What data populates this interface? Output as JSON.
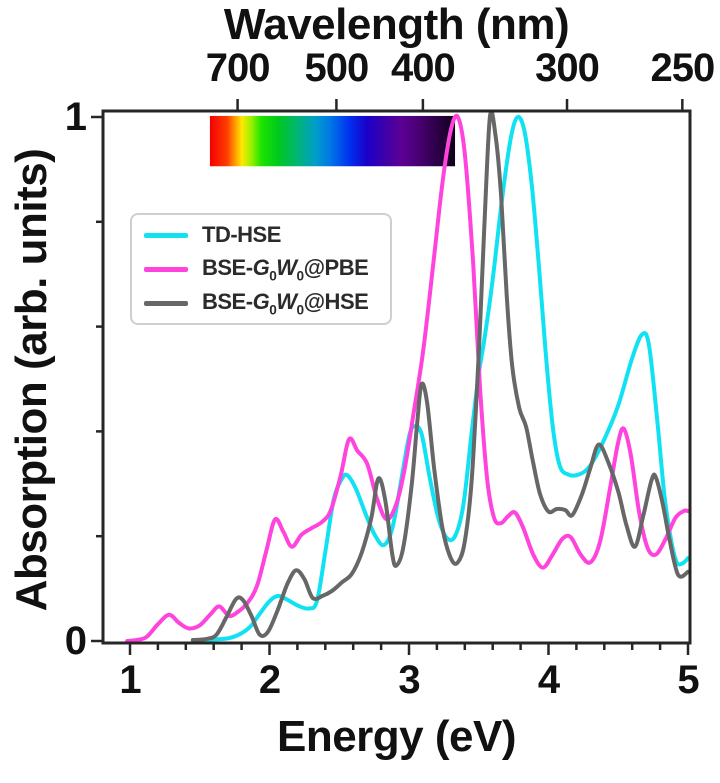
{
  "figure": {
    "top_axis_title": "Wavelength (nm)",
    "xlabel": "Energy (eV)",
    "ylabel": "Absorption (arb. units)"
  },
  "legend": {
    "items": [
      {
        "label": "TD-HSE",
        "color": "#10e2f2"
      },
      {
        "prefix": "BSE-",
        "G": "G",
        "Gsub": "0",
        "W": "W",
        "Wsub": "0",
        "suffix": "@PBE",
        "color": "#ff44dd"
      },
      {
        "prefix": "BSE-",
        "G": "G",
        "Gsub": "0",
        "W": "W",
        "Wsub": "0",
        "suffix": "@HSE",
        "color": "#676767"
      }
    ]
  },
  "chart_data": {
    "type": "line",
    "title": "Wavelength (nm)",
    "xlabel": "Energy (eV)",
    "ylabel": "Absorption (arb. units)",
    "xlim": [
      0.81,
      5.01
    ],
    "ylim": [
      0,
      1.01
    ],
    "grid": false,
    "legend_position": "upper-left",
    "x_major_ticks": [
      1,
      2,
      3,
      4,
      5
    ],
    "x_minor_step": 0.2,
    "y_ticks": [
      0,
      0.2,
      0.4,
      0.6,
      0.8,
      1.0
    ],
    "y_labeled_ticks": [
      0,
      1
    ],
    "top_axis": {
      "label": "Wavelength (nm)",
      "ticks_nm": [
        700,
        500,
        400,
        300,
        250
      ],
      "ev_per_nm_constant": 1239.84
    },
    "spectrum_bar": {
      "e_start": 1.573,
      "e_end": 3.33,
      "v_top": 1.002,
      "v_bottom": 0.906,
      "stops": [
        {
          "pos": 0.0,
          "color": "#f40000"
        },
        {
          "pos": 0.07,
          "color": "#ff3c00"
        },
        {
          "pos": 0.1,
          "color": "#ff9400"
        },
        {
          "pos": 0.13,
          "color": "#ffe800"
        },
        {
          "pos": 0.17,
          "color": "#96f000"
        },
        {
          "pos": 0.21,
          "color": "#1ce400"
        },
        {
          "pos": 0.28,
          "color": "#00c81e"
        },
        {
          "pos": 0.36,
          "color": "#00b478"
        },
        {
          "pos": 0.43,
          "color": "#009ec8"
        },
        {
          "pos": 0.49,
          "color": "#0078e6"
        },
        {
          "pos": 0.57,
          "color": "#0030f0"
        },
        {
          "pos": 0.64,
          "color": "#1a00c8"
        },
        {
          "pos": 0.71,
          "color": "#3c00aa"
        },
        {
          "pos": 0.78,
          "color": "#5c0096"
        },
        {
          "pos": 0.86,
          "color": "#46006e"
        },
        {
          "pos": 0.94,
          "color": "#280040"
        },
        {
          "pos": 1.0,
          "color": "#100018"
        }
      ]
    },
    "series": [
      {
        "name": "TD-HSE",
        "color": "#10e2f2",
        "points": [
          [
            1.5,
            0.002
          ],
          [
            1.6,
            0.003
          ],
          [
            1.7,
            0.005
          ],
          [
            1.78,
            0.012
          ],
          [
            1.86,
            0.027
          ],
          [
            1.93,
            0.052
          ],
          [
            2.0,
            0.076
          ],
          [
            2.06,
            0.086
          ],
          [
            2.12,
            0.08
          ],
          [
            2.2,
            0.068
          ],
          [
            2.28,
            0.062
          ],
          [
            2.34,
            0.076
          ],
          [
            2.4,
            0.17
          ],
          [
            2.46,
            0.27
          ],
          [
            2.52,
            0.31
          ],
          [
            2.56,
            0.316
          ],
          [
            2.62,
            0.29
          ],
          [
            2.7,
            0.235
          ],
          [
            2.76,
            0.2
          ],
          [
            2.82,
            0.183
          ],
          [
            2.88,
            0.215
          ],
          [
            2.94,
            0.3
          ],
          [
            3.0,
            0.39
          ],
          [
            3.04,
            0.41
          ],
          [
            3.09,
            0.395
          ],
          [
            3.15,
            0.31
          ],
          [
            3.21,
            0.235
          ],
          [
            3.27,
            0.197
          ],
          [
            3.33,
            0.2
          ],
          [
            3.39,
            0.26
          ],
          [
            3.45,
            0.4
          ],
          [
            3.5,
            0.51
          ],
          [
            3.54,
            0.575
          ],
          [
            3.6,
            0.69
          ],
          [
            3.67,
            0.85
          ],
          [
            3.73,
            0.96
          ],
          [
            3.78,
            1.0
          ],
          [
            3.83,
            0.97
          ],
          [
            3.88,
            0.87
          ],
          [
            3.93,
            0.72
          ],
          [
            3.98,
            0.55
          ],
          [
            4.03,
            0.41
          ],
          [
            4.08,
            0.335
          ],
          [
            4.14,
            0.318
          ],
          [
            4.22,
            0.318
          ],
          [
            4.3,
            0.335
          ],
          [
            4.4,
            0.385
          ],
          [
            4.5,
            0.45
          ],
          [
            4.6,
            0.54
          ],
          [
            4.67,
            0.585
          ],
          [
            4.72,
            0.565
          ],
          [
            4.78,
            0.42
          ],
          [
            4.83,
            0.28
          ],
          [
            4.88,
            0.19
          ],
          [
            4.92,
            0.15
          ],
          [
            4.96,
            0.148
          ],
          [
            5.0,
            0.158
          ]
        ]
      },
      {
        "name": "BSE-G0W0@PBE",
        "color": "#ff44dd",
        "points": [
          [
            0.98,
            0.0
          ],
          [
            1.05,
            0.002
          ],
          [
            1.12,
            0.008
          ],
          [
            1.2,
            0.032
          ],
          [
            1.28,
            0.05
          ],
          [
            1.35,
            0.035
          ],
          [
            1.42,
            0.024
          ],
          [
            1.5,
            0.03
          ],
          [
            1.58,
            0.052
          ],
          [
            1.64,
            0.066
          ],
          [
            1.71,
            0.048
          ],
          [
            1.77,
            0.055
          ],
          [
            1.84,
            0.072
          ],
          [
            1.91,
            0.105
          ],
          [
            1.98,
            0.175
          ],
          [
            2.04,
            0.232
          ],
          [
            2.1,
            0.208
          ],
          [
            2.16,
            0.18
          ],
          [
            2.23,
            0.203
          ],
          [
            2.3,
            0.215
          ],
          [
            2.38,
            0.228
          ],
          [
            2.44,
            0.25
          ],
          [
            2.51,
            0.315
          ],
          [
            2.57,
            0.385
          ],
          [
            2.63,
            0.363
          ],
          [
            2.7,
            0.338
          ],
          [
            2.77,
            0.272
          ],
          [
            2.84,
            0.232
          ],
          [
            2.91,
            0.262
          ],
          [
            2.97,
            0.33
          ],
          [
            3.03,
            0.43
          ],
          [
            3.1,
            0.55
          ],
          [
            3.17,
            0.71
          ],
          [
            3.24,
            0.875
          ],
          [
            3.3,
            0.975
          ],
          [
            3.35,
            1.0
          ],
          [
            3.4,
            0.93
          ],
          [
            3.46,
            0.72
          ],
          [
            3.51,
            0.48
          ],
          [
            3.56,
            0.31
          ],
          [
            3.61,
            0.235
          ],
          [
            3.66,
            0.225
          ],
          [
            3.71,
            0.238
          ],
          [
            3.76,
            0.245
          ],
          [
            3.82,
            0.215
          ],
          [
            3.89,
            0.165
          ],
          [
            3.96,
            0.14
          ],
          [
            4.03,
            0.165
          ],
          [
            4.1,
            0.195
          ],
          [
            4.16,
            0.198
          ],
          [
            4.23,
            0.165
          ],
          [
            4.3,
            0.15
          ],
          [
            4.37,
            0.19
          ],
          [
            4.44,
            0.29
          ],
          [
            4.5,
            0.38
          ],
          [
            4.54,
            0.405
          ],
          [
            4.59,
            0.355
          ],
          [
            4.65,
            0.245
          ],
          [
            4.71,
            0.178
          ],
          [
            4.77,
            0.165
          ],
          [
            4.84,
            0.195
          ],
          [
            4.91,
            0.235
          ],
          [
            4.97,
            0.248
          ],
          [
            5.0,
            0.248
          ]
        ]
      },
      {
        "name": "BSE-G0W0@HSE",
        "color": "#676767",
        "points": [
          [
            1.45,
            0.002
          ],
          [
            1.55,
            0.004
          ],
          [
            1.62,
            0.012
          ],
          [
            1.69,
            0.045
          ],
          [
            1.76,
            0.08
          ],
          [
            1.81,
            0.078
          ],
          [
            1.87,
            0.048
          ],
          [
            1.93,
            0.012
          ],
          [
            1.99,
            0.018
          ],
          [
            2.06,
            0.06
          ],
          [
            2.13,
            0.11
          ],
          [
            2.19,
            0.135
          ],
          [
            2.25,
            0.118
          ],
          [
            2.31,
            0.082
          ],
          [
            2.38,
            0.086
          ],
          [
            2.45,
            0.096
          ],
          [
            2.52,
            0.112
          ],
          [
            2.59,
            0.128
          ],
          [
            2.66,
            0.168
          ],
          [
            2.73,
            0.235
          ],
          [
            2.78,
            0.31
          ],
          [
            2.83,
            0.268
          ],
          [
            2.88,
            0.165
          ],
          [
            2.91,
            0.144
          ],
          [
            2.96,
            0.18
          ],
          [
            3.02,
            0.3
          ],
          [
            3.06,
            0.42
          ],
          [
            3.09,
            0.49
          ],
          [
            3.13,
            0.455
          ],
          [
            3.18,
            0.33
          ],
          [
            3.24,
            0.215
          ],
          [
            3.3,
            0.158
          ],
          [
            3.35,
            0.15
          ],
          [
            3.4,
            0.19
          ],
          [
            3.45,
            0.31
          ],
          [
            3.5,
            0.55
          ],
          [
            3.54,
            0.79
          ],
          [
            3.58,
            1.0
          ],
          [
            3.62,
            0.965
          ],
          [
            3.66,
            0.85
          ],
          [
            3.7,
            0.66
          ],
          [
            3.74,
            0.525
          ],
          [
            3.79,
            0.445
          ],
          [
            3.84,
            0.408
          ],
          [
            3.89,
            0.34
          ],
          [
            3.94,
            0.28
          ],
          [
            4.0,
            0.247
          ],
          [
            4.06,
            0.252
          ],
          [
            4.12,
            0.25
          ],
          [
            4.17,
            0.24
          ],
          [
            4.24,
            0.28
          ],
          [
            4.3,
            0.33
          ],
          [
            4.36,
            0.375
          ],
          [
            4.43,
            0.34
          ],
          [
            4.5,
            0.285
          ],
          [
            4.56,
            0.22
          ],
          [
            4.62,
            0.18
          ],
          [
            4.68,
            0.24
          ],
          [
            4.74,
            0.308
          ],
          [
            4.77,
            0.312
          ],
          [
            4.82,
            0.26
          ],
          [
            4.87,
            0.19
          ],
          [
            4.93,
            0.126
          ],
          [
            5.0,
            0.132
          ]
        ]
      }
    ]
  }
}
